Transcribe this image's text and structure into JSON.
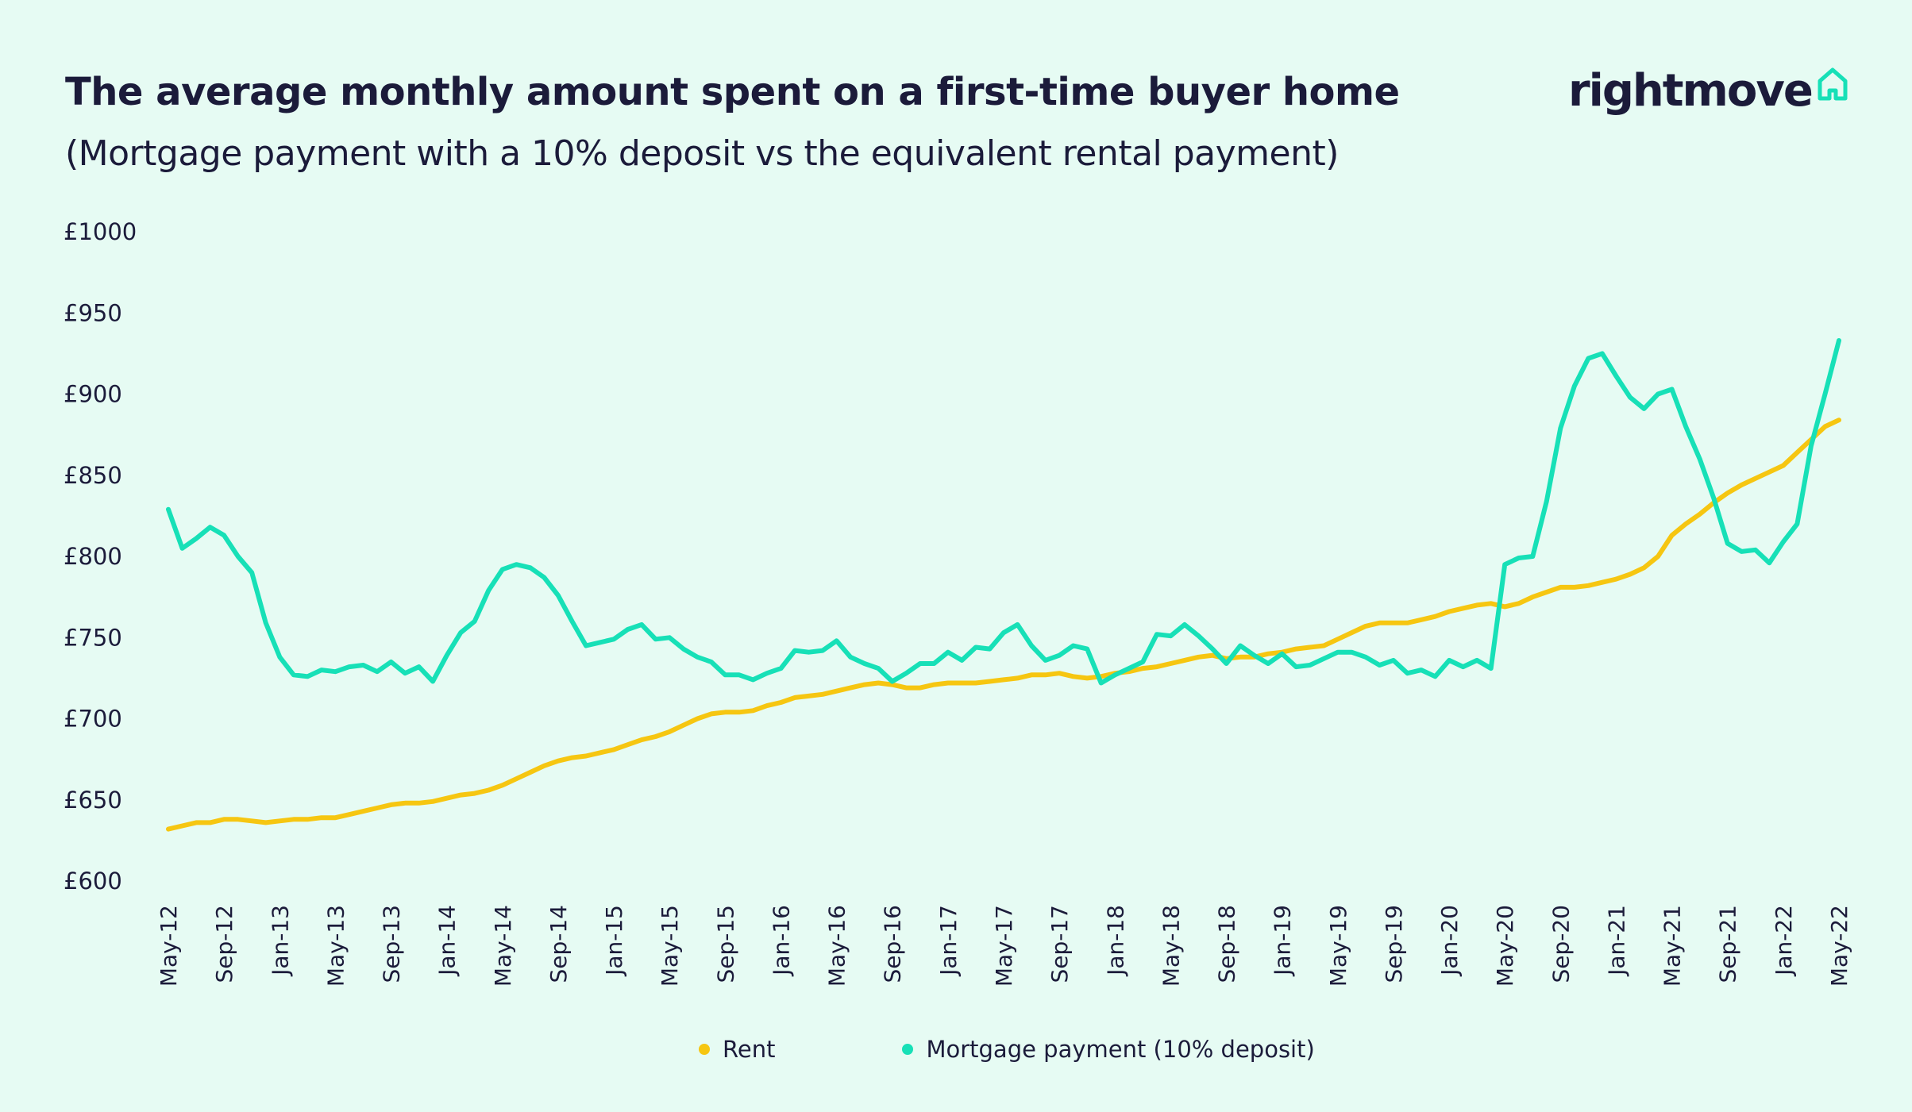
{
  "header": {
    "title": "The average monthly amount spent on a first-time buyer home",
    "subtitle": "(Mortgage payment with a 10% deposit vs the equivalent rental payment)"
  },
  "brand": {
    "logo_text": "rightmove",
    "logo_icon": "house-icon"
  },
  "colors": {
    "background": "#e6fbf3",
    "rent": "#f6c611",
    "mortgage": "#17e0b7",
    "text": "#1b1b3a"
  },
  "chart_data": {
    "type": "line",
    "title": "The average monthly amount spent on a first-time buyer home",
    "subtitle": "(Mortgage payment with a 10% deposit vs the equivalent rental payment)",
    "xlabel": "",
    "ylabel": "",
    "ylim": [
      600,
      1000
    ],
    "yticks": [
      "£600",
      "£650",
      "£700",
      "£750",
      "£800",
      "£850",
      "£900",
      "£950",
      "£1000"
    ],
    "ytick_values": [
      600,
      650,
      700,
      750,
      800,
      850,
      900,
      950,
      1000
    ],
    "x_tick_labels": [
      "May-12",
      "Sep-12",
      "Jan-13",
      "May-13",
      "Sep-13",
      "Jan-14",
      "May-14",
      "Sep-14",
      "Jan-15",
      "May-15",
      "Sep-15",
      "Jan-16",
      "May-16",
      "Sep-16",
      "Jan-17",
      "May-17",
      "Sep-17",
      "Jan-18",
      "May-18",
      "Sep-18",
      "Jan-19",
      "May-19",
      "Sep-19",
      "Jan-20",
      "May-20",
      "Sep-20",
      "Jan-21",
      "May-21",
      "Sep-21",
      "Jan-22",
      "May-22"
    ],
    "x_start": "May-12",
    "x_end": "May-22",
    "grid": false,
    "legend_position": "bottom",
    "series": [
      {
        "name": "Rent",
        "color": "#f6c611",
        "values": [
          632,
          634,
          636,
          636,
          638,
          638,
          637,
          636,
          637,
          638,
          638,
          639,
          639,
          641,
          643,
          645,
          647,
          648,
          648,
          649,
          651,
          653,
          654,
          656,
          659,
          663,
          667,
          671,
          674,
          676,
          677,
          679,
          681,
          684,
          687,
          689,
          692,
          696,
          700,
          703,
          704,
          704,
          705,
          708,
          710,
          713,
          714,
          715,
          717,
          719,
          721,
          722,
          721,
          719,
          719,
          721,
          722,
          722,
          722,
          723,
          724,
          725,
          727,
          727,
          728,
          726,
          725,
          726,
          728,
          729,
          731,
          732,
          734,
          736,
          738,
          739,
          737,
          738,
          738,
          740,
          741,
          743,
          744,
          745,
          749,
          753,
          757,
          759,
          759,
          759,
          761,
          763,
          766,
          768,
          770,
          771,
          769,
          771,
          775,
          778,
          781,
          781,
          782,
          784,
          786,
          789,
          793,
          800,
          813,
          820,
          826,
          833,
          839,
          844,
          848,
          852,
          856,
          864,
          872,
          880,
          884
        ]
      },
      {
        "name": "Mortgage payment (10% deposit)",
        "color": "#17e0b7",
        "values": [
          829,
          805,
          811,
          818,
          813,
          800,
          790,
          759,
          738,
          727,
          726,
          730,
          729,
          732,
          733,
          729,
          735,
          728,
          732,
          723,
          739,
          753,
          760,
          779,
          792,
          795,
          793,
          787,
          776,
          760,
          745,
          747,
          749,
          755,
          758,
          749,
          750,
          743,
          738,
          735,
          727,
          727,
          724,
          728,
          731,
          742,
          741,
          742,
          748,
          738,
          734,
          731,
          723,
          728,
          734,
          734,
          741,
          736,
          744,
          743,
          753,
          758,
          745,
          736,
          739,
          745,
          743,
          722,
          727,
          731,
          735,
          752,
          751,
          758,
          751,
          743,
          734,
          745,
          739,
          734,
          740,
          732,
          733,
          737,
          741,
          741,
          738,
          733,
          736,
          728,
          730,
          726,
          736,
          732,
          736,
          731,
          795,
          799,
          800,
          834,
          879,
          905,
          922,
          925,
          911,
          898,
          891,
          900,
          903,
          880,
          860,
          836,
          808,
          803,
          804,
          796,
          809,
          820,
          868,
          900,
          933
        ]
      }
    ]
  },
  "legend": [
    {
      "label": "Rent",
      "color": "#f6c611"
    },
    {
      "label": "Mortgage payment (10% deposit)",
      "color": "#17e0b7"
    }
  ]
}
